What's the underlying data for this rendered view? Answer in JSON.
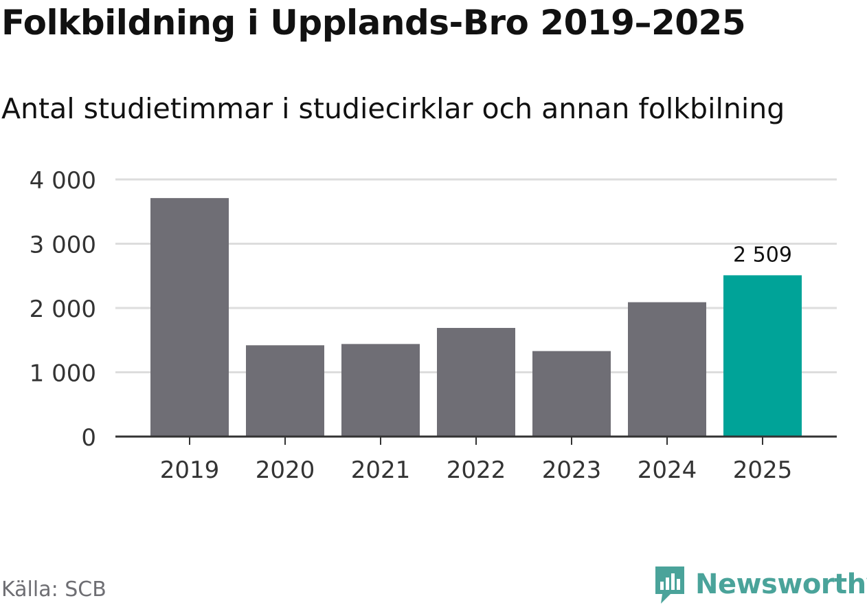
{
  "title": "Folkbildning i Upplands-Bro 2019–2025",
  "subtitle": "Antal studietimmar i studiecirklar och annan folkbilning",
  "source": "Källa: SCB",
  "brand": {
    "name": "Newsworthy",
    "logo_icon": "bar-chart-speech-bubble-icon",
    "color": "#4aa39a"
  },
  "colors": {
    "bar": "#6f6e75",
    "highlight": "#00a398",
    "grid": "#dddddd",
    "axis": "#333333"
  },
  "chart_data": {
    "type": "bar",
    "categories": [
      "2019",
      "2020",
      "2021",
      "2022",
      "2023",
      "2024",
      "2025"
    ],
    "values": [
      3710,
      1420,
      1440,
      1690,
      1330,
      2090,
      2509
    ],
    "highlight_index": 6,
    "data_labels": [
      {
        "index": 6,
        "text": "2 509"
      }
    ],
    "yticks": [
      {
        "value": 0,
        "label": "0"
      },
      {
        "value": 1000,
        "label": "1 000"
      },
      {
        "value": 2000,
        "label": "2 000"
      },
      {
        "value": 3000,
        "label": "3 000"
      },
      {
        "value": 4000,
        "label": "4 000"
      }
    ],
    "ylim": [
      0,
      4000
    ],
    "xlabel": "",
    "ylabel": "",
    "grid": true
  }
}
